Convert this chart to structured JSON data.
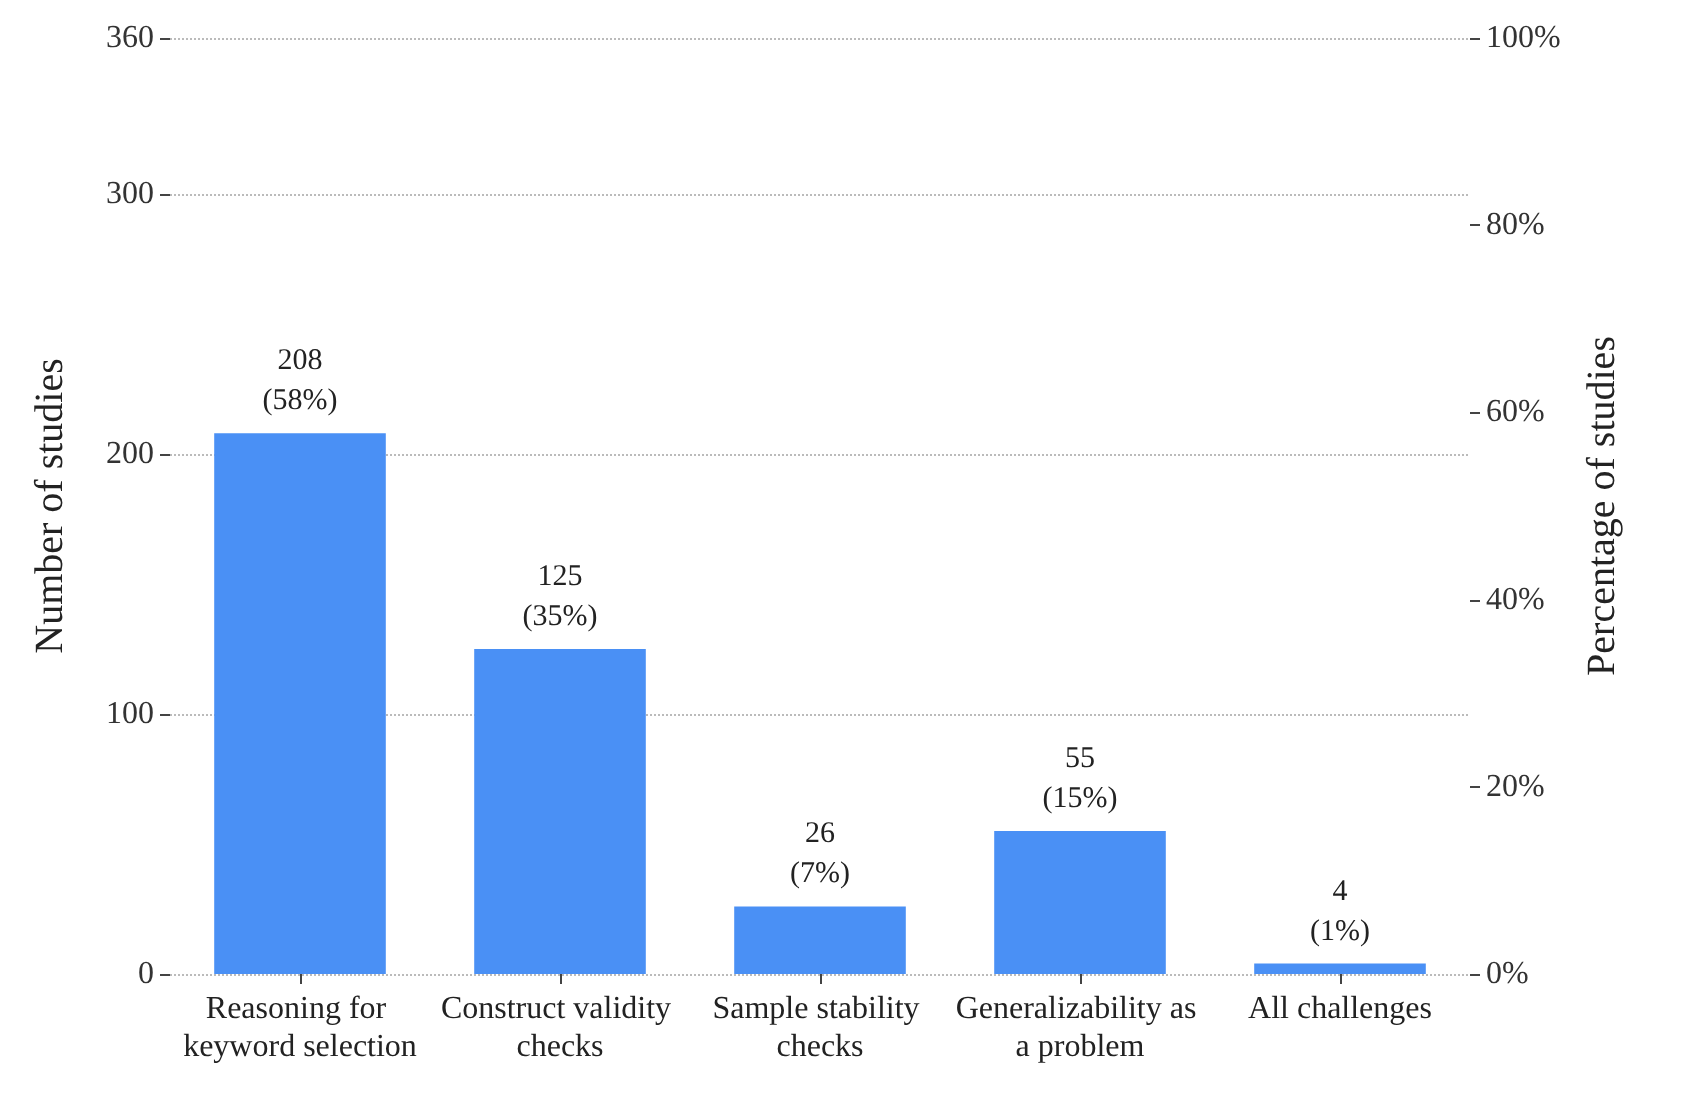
{
  "chart_data": {
    "type": "bar",
    "categories": [
      "Reasoning for keyword selection",
      "Construct validity checks",
      "Sample stability checks",
      "Generalizability as a problem",
      "All challenges"
    ],
    "values": [
      208,
      125,
      26,
      55,
      4
    ],
    "value_labels": [
      "208\n(58%)",
      "125\n(35%)",
      "26\n(7%)",
      "55\n(15%)",
      "4\n(1%)"
    ],
    "color": "#4a90f5",
    "ylabel": "Number of studies",
    "y2label": "Percentage of studies",
    "ylim": [
      0,
      360
    ],
    "yticks": [
      0,
      100,
      200,
      300,
      360
    ],
    "y2lim": [
      0,
      100
    ],
    "y2ticks": [
      {
        "value": 0,
        "label": "0%"
      },
      {
        "value": 20,
        "label": "20%"
      },
      {
        "value": 40,
        "label": "40%"
      },
      {
        "value": 60,
        "label": "60%"
      },
      {
        "value": 80,
        "label": "80%"
      },
      {
        "value": 100,
        "label": "100%"
      }
    ],
    "grid": "y"
  }
}
